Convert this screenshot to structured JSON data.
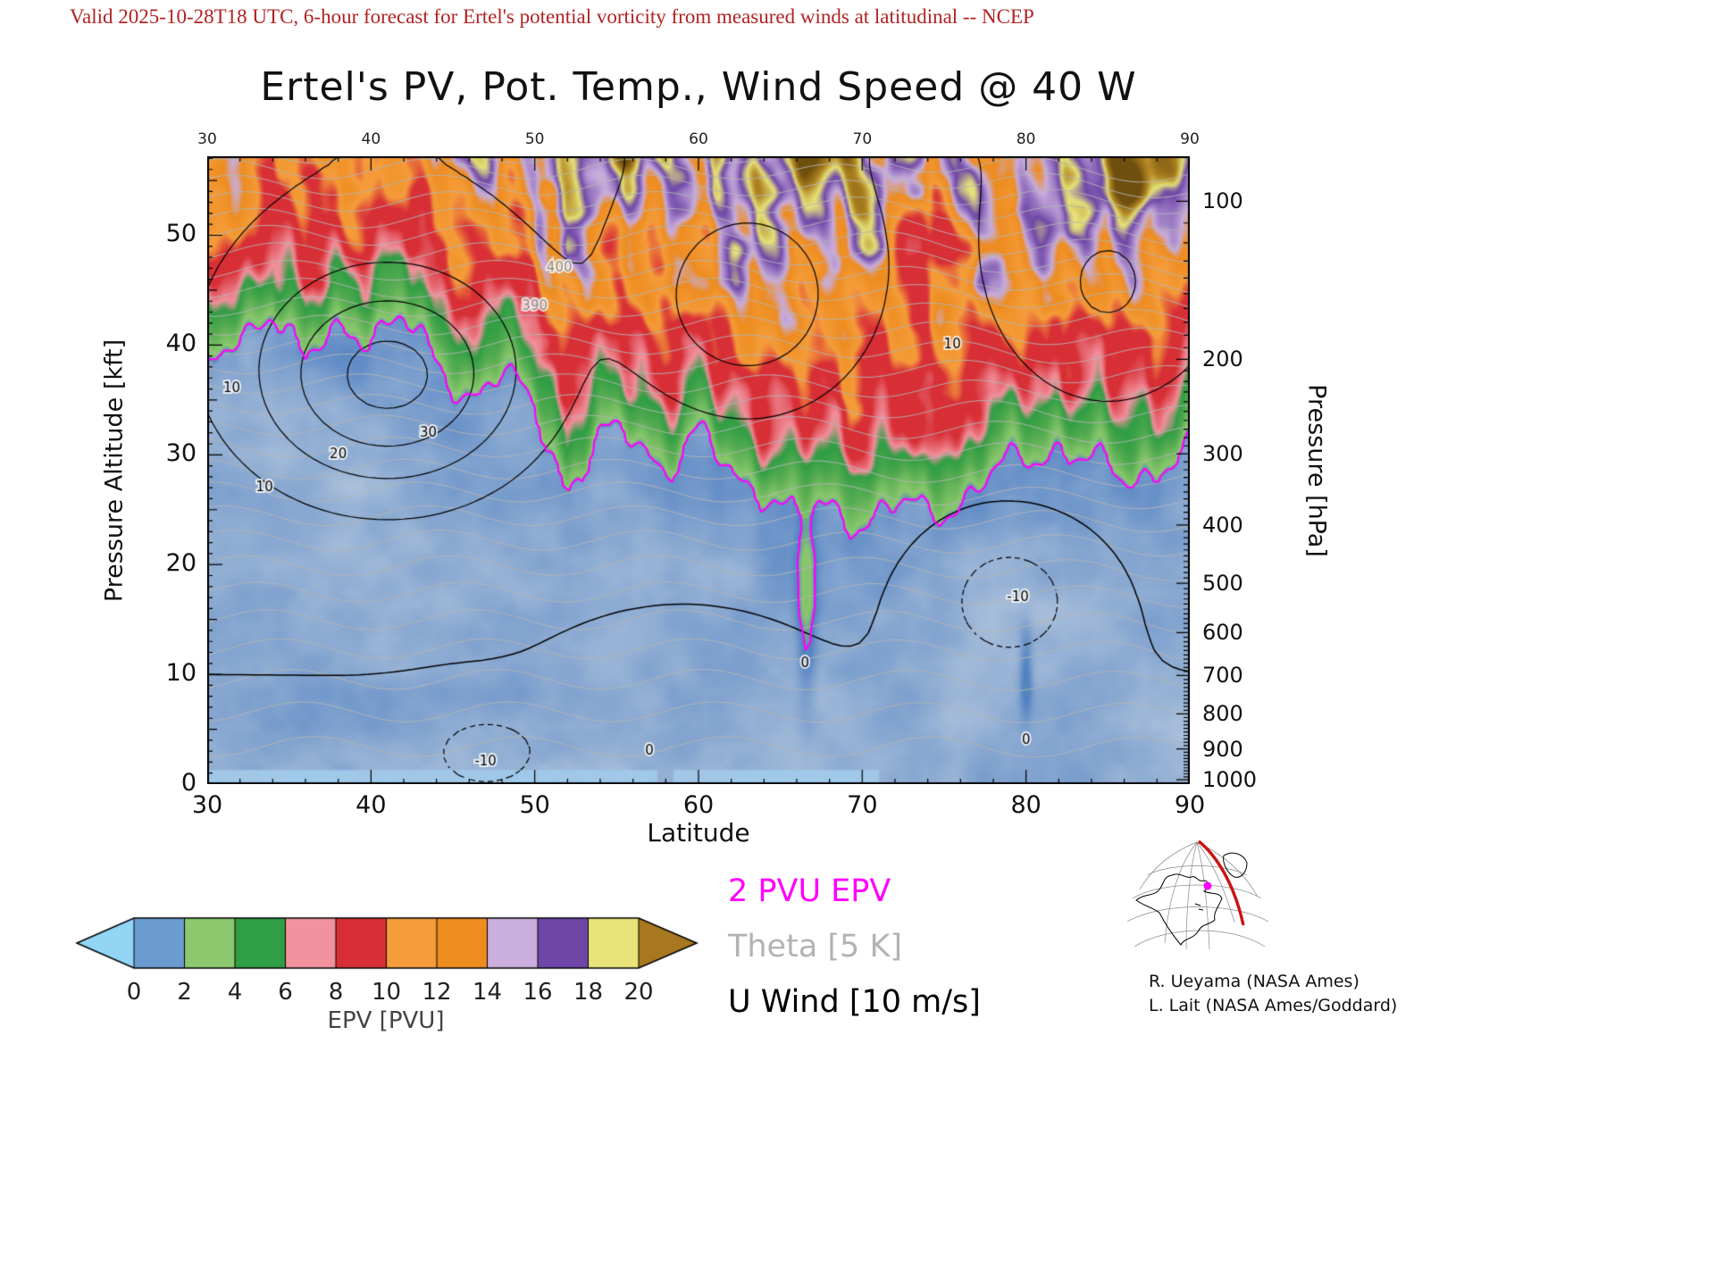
{
  "header": {
    "text": "Valid 2025-10-28T18 UTC, 6-hour forecast for Ertel's potential vorticity from measured winds at latitudinal -- NCEP",
    "color": "#b22222"
  },
  "title": {
    "text": "Ertel's PV, Pot. Temp., Wind Speed @ 40 W"
  },
  "chart_data": {
    "type": "heatmap",
    "subtype": "latitude-height filled-contour cross section of Ertel potential vorticity with potential temperature and zonal wind contour overlays",
    "x": {
      "label": "Latitude",
      "min": 30,
      "max": 90,
      "ticks": [
        "30",
        "40",
        "50",
        "60",
        "70",
        "80",
        "90"
      ],
      "top_ticks": [
        "30",
        "40",
        "50",
        "60",
        "70",
        "80",
        "90"
      ]
    },
    "y_left": {
      "label": "Pressure Altitude [kft]",
      "min": 0,
      "max": 57.2,
      "ticks": [
        "0",
        "10",
        "20",
        "30",
        "40",
        "50"
      ]
    },
    "y_right": {
      "label": "Pressure [hPa]",
      "ticks": [
        {
          "label": "100",
          "kft": 53.1
        },
        {
          "label": "200",
          "kft": 38.7
        },
        {
          "label": "300",
          "kft": 30.1
        },
        {
          "label": "400",
          "kft": 23.6
        },
        {
          "label": "500",
          "kft": 18.3
        },
        {
          "label": "600",
          "kft": 13.8
        },
        {
          "label": "700",
          "kft": 9.9
        },
        {
          "label": "800",
          "kft": 6.4
        },
        {
          "label": "900",
          "kft": 3.2
        },
        {
          "label": "1000",
          "kft": 0.4
        }
      ]
    },
    "colorbar": {
      "caption": "EPV [PVU]",
      "tick_labels": [
        "0",
        "2",
        "4",
        "6",
        "8",
        "10",
        "12",
        "14",
        "16",
        "18",
        "20"
      ],
      "segment_colors": [
        "#6b9ccf",
        "#8cc96e",
        "#2f9e44",
        "#f2929e",
        "#d82f36",
        "#f59d3b",
        "#ee8c1f",
        "#c9aede",
        "#6f46a8",
        "#e8e47a"
      ],
      "under_arrow_color": "#93d5f5",
      "over_arrow_color": "#a87820",
      "outline_color": "#000000",
      "stops": [
        [
          -2,
          "#93d5f5"
        ],
        [
          -0.6,
          "#9fc9ea"
        ],
        [
          0.3,
          "#a9bfda"
        ],
        [
          1.9,
          "#5080c1"
        ],
        [
          2.6,
          "#8cc96e"
        ],
        [
          4.4,
          "#54ab51"
        ],
        [
          5.9,
          "#2f9e44"
        ],
        [
          6.8,
          "#f2929e"
        ],
        [
          8.3,
          "#d82f36"
        ],
        [
          9.8,
          "#d82f36"
        ],
        [
          11.2,
          "#f59d3b"
        ],
        [
          13.6,
          "#ee8c1f"
        ],
        [
          14.8,
          "#c9aede"
        ],
        [
          16.8,
          "#6f46a8"
        ],
        [
          18.4,
          "#e8e47a"
        ],
        [
          20.2,
          "#b08422"
        ],
        [
          23,
          "#6f4f0e"
        ]
      ]
    },
    "field": {
      "name": "Ertel potential vorticity",
      "units": "PVU",
      "tropopause_2pvu_kft": {
        "lat_start": 30,
        "lat_step": 2,
        "values": [
          37,
          40,
          44,
          38,
          41,
          41.5,
          42,
          38,
          35.5,
          37,
          34,
          27,
          31,
          31.5,
          29,
          31.5,
          28,
          27,
          24,
          25,
          24,
          25,
          24.5,
          26,
          28,
          29.5,
          31,
          29,
          27.5,
          29,
          30
        ]
      },
      "anomalies": [
        {
          "lat": 74,
          "kft": 51,
          "rlat": 2.2,
          "rkft": 7,
          "amp": -5.5
        },
        {
          "lat": 86.5,
          "kft": 56,
          "rlat": 2.5,
          "rkft": 4,
          "amp": 7
        },
        {
          "lat": 67.5,
          "kft": 57,
          "rlat": 1.6,
          "rkft": 3,
          "amp": 6
        },
        {
          "lat": 55.5,
          "kft": 57,
          "rlat": 1.3,
          "rkft": 3,
          "amp": 5
        },
        {
          "lat": 47,
          "kft": 57,
          "rlat": 1.1,
          "rkft": 2.5,
          "amp": 4
        },
        {
          "lat": 31.5,
          "kft": 51,
          "rlat": 2.0,
          "rkft": 5,
          "amp": 3
        },
        {
          "lat": 62,
          "kft": 48,
          "rlat": 1.6,
          "rkft": 3,
          "amp": 3
        },
        {
          "lat": 82,
          "kft": 52,
          "rlat": 2.0,
          "rkft": 4,
          "amp": 3.5
        },
        {
          "lat": 66.6,
          "kft": 17,
          "rlat": 0.6,
          "rkft": 9,
          "amp": 1.7
        },
        {
          "lat": 80,
          "kft": 10,
          "rlat": 0.4,
          "rkft": 4,
          "amp": 1.4
        }
      ]
    },
    "overlays": {
      "epv_contour": {
        "level_pvu": 2,
        "color": "#ff00ff"
      },
      "theta": {
        "interval_K": 5,
        "color": "#b4b4b4",
        "surface_K": 295,
        "labels": [
          {
            "text": "390",
            "lat": 50,
            "kft": 43.5
          },
          {
            "text": "400",
            "lat": 51.5,
            "kft": 47
          }
        ]
      },
      "u_wind": {
        "interval_ms": 10,
        "color": "#000000",
        "negative_style": "dashed",
        "base": {
          "offset": -2,
          "per_kft": 0.2
        },
        "centers": [
          {
            "lat": 41,
            "kft": 37,
            "rlat": 8,
            "rkft": 10,
            "amp": 38
          },
          {
            "lat": 63,
            "kft": 44,
            "rlat": 6,
            "rkft": 9,
            "amp": 22
          },
          {
            "lat": 79,
            "kft": 17,
            "rlat": 5,
            "rkft": 7,
            "amp": -16
          },
          {
            "lat": 85,
            "kft": 45,
            "rlat": 6,
            "rkft": 10,
            "amp": 14
          },
          {
            "lat": 47,
            "kft": 3,
            "rlat": 4,
            "rkft": 4,
            "amp": -13
          },
          {
            "lat": 59,
            "kft": 8,
            "rlat": 6,
            "rkft": 6,
            "amp": -9
          }
        ],
        "labels": [
          {
            "text": "30",
            "lat": 43.5,
            "kft": 32
          },
          {
            "text": "20",
            "lat": 38,
            "kft": 30
          },
          {
            "text": "10",
            "lat": 33.5,
            "kft": 27
          },
          {
            "text": "10",
            "lat": 31.5,
            "kft": 36
          },
          {
            "text": "10",
            "lat": 75.5,
            "kft": 40
          },
          {
            "text": "0",
            "lat": 57,
            "kft": 3
          },
          {
            "text": "0",
            "lat": 66.5,
            "kft": 11
          },
          {
            "text": "-10",
            "lat": 79.5,
            "kft": 17
          },
          {
            "text": "-10",
            "lat": 47,
            "kft": 2
          },
          {
            "text": "0",
            "lat": 80,
            "kft": 4
          }
        ]
      }
    },
    "legend": [
      {
        "text": "2 PVU EPV",
        "color": "#ff00ff"
      },
      {
        "text": "Theta [5 K]",
        "color": "#b3b3b3"
      },
      {
        "text": "U Wind [10 m/s]",
        "color": "#000000"
      }
    ]
  },
  "inset_map": {
    "description": "orthographic globe centered on North America with 40 W meridian highlighted",
    "meridian_color": "#cc1111",
    "marker_color": "#ff00ff"
  },
  "credits": [
    "R. Ueyama (NASA Ames)",
    "L. Lait (NASA Ames/Goddard)"
  ]
}
